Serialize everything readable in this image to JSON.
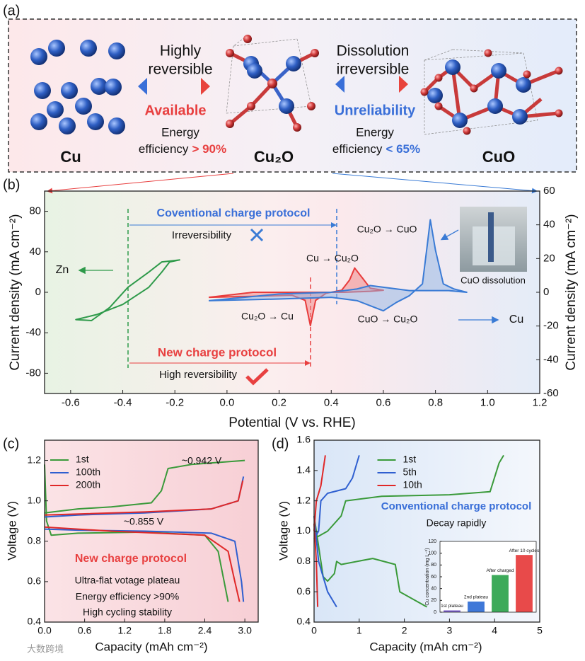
{
  "panel_labels": [
    "(a)",
    "(b)",
    "(c)",
    "(d)"
  ],
  "diagram": {
    "left": {
      "lines": [
        "Highly",
        "reversible"
      ],
      "status": "Available",
      "energy": "Energy",
      "efficiency": "efficiency",
      "value": "> 90%"
    },
    "right": {
      "lines": [
        "Dissolution",
        "irreversible"
      ],
      "status": "Unreliability",
      "energy": "Energy",
      "efficiency": "efficiency",
      "value": "< 65%"
    },
    "materials": [
      "Cu",
      "Cu₂O",
      "CuO"
    ]
  },
  "watermark": "大数跨境",
  "chart_data": [
    {
      "type": "line",
      "xlabel": "Potential (V vs. RHE)",
      "ylabel": "Current density (mA cm⁻²)",
      "y2label": "Current density (mA cm⁻²)",
      "xlim": [
        -0.7,
        1.2
      ],
      "xticks": [
        -0.6,
        -0.4,
        -0.2,
        {
          "value": 0,
          "label": "0.0"
        },
        0.2,
        0.4,
        0.6,
        0.8,
        {
          "value": 1,
          "label": "1.0"
        },
        1.2
      ],
      "ylim": [
        -100,
        100
      ],
      "yticks": [
        -80,
        -40,
        0,
        40,
        80
      ],
      "y2lim": [
        -60,
        60
      ],
      "y2ticks": [
        -60,
        -40,
        -20,
        0,
        20,
        40,
        60
      ],
      "series": [
        {
          "color": "#2e9a4a",
          "x": [
            -0.18,
            -0.25,
            -0.3,
            -0.38,
            -0.45,
            -0.52,
            -0.58,
            -0.5,
            -0.4,
            -0.3,
            -0.25,
            -0.22,
            -0.18
          ],
          "values": [
            32,
            30,
            20,
            5,
            -15,
            -28,
            -27,
            -22,
            -12,
            5,
            20,
            30,
            32
          ]
        },
        {
          "color": "#e83c3c",
          "fill": "#f08080",
          "x": [
            -0.07,
            0.1,
            0.25,
            0.3,
            0.32,
            0.34,
            0.38,
            0.44,
            0.47,
            0.49,
            0.52,
            0.55,
            0.6,
            0.55,
            0.45,
            0.3,
            0.1,
            -0.07
          ],
          "values": [
            -5,
            -4,
            -3,
            -8,
            -33,
            -8,
            -1,
            2,
            12,
            24,
            14,
            4,
            2,
            1,
            0,
            0,
            0,
            -5
          ]
        },
        {
          "color": "#3a7bd5",
          "fill": "#8fb3e3",
          "axis": "y2",
          "x": [
            -0.07,
            0.2,
            0.4,
            0.5,
            0.6,
            0.65,
            0.7,
            0.75,
            0.77,
            0.78,
            0.8,
            0.83,
            0.87,
            0.92,
            0.85,
            0.7,
            0.55,
            0.5,
            0.4,
            0.2,
            -0.07
          ],
          "values": [
            -5,
            -4,
            -3,
            -5,
            -11,
            -6,
            -2,
            5,
            30,
            43,
            25,
            5,
            2,
            0,
            1,
            1,
            4,
            2,
            0,
            -1,
            -5
          ]
        }
      ],
      "annotations": [
        "Coventional charge protocol",
        "Irreversibility",
        "New charge protocol",
        "High reversibility",
        "Zn",
        "Cu → Cu₂O",
        "Cu₂O → CuO",
        "Cu₂O → Cu",
        "CuO → Cu₂O",
        "Cu",
        "CuO dissolution"
      ]
    },
    {
      "type": "line",
      "xlabel": "Capacity (mAh cm⁻²)",
      "ylabel": "Voltage (V)",
      "xlim": [
        0,
        3.2
      ],
      "xticks": [
        {
          "value": 0,
          "label": "0.0"
        },
        0.6,
        1.2,
        1.8,
        2.4,
        {
          "value": 3,
          "label": "3.0"
        }
      ],
      "ylim": [
        0.4,
        1.3
      ],
      "yticks": [
        0.4,
        0.6,
        0.8,
        {
          "value": 1,
          "label": "1.0"
        },
        1.2
      ],
      "legend": "upper left",
      "series": [
        {
          "name": "1st",
          "color": "#3a9a3a",
          "x": [
            0,
            0.5,
            1.0,
            1.6,
            1.75,
            1.85,
            2.2,
            3.0,
            null,
            0,
            0.03,
            0.1,
            0.5,
            1.5,
            2.4,
            2.6,
            2.75
          ],
          "values": [
            0.94,
            0.96,
            0.97,
            0.99,
            1.05,
            1.16,
            1.18,
            1.2,
            null,
            1.18,
            0.9,
            0.83,
            0.84,
            0.845,
            0.83,
            0.75,
            0.5
          ]
        },
        {
          "name": "100th",
          "color": "#2f5fd0",
          "x": [
            0,
            0.5,
            1.5,
            2.5,
            2.9,
            2.98,
            null,
            0,
            0.5,
            1.5,
            2.5,
            2.85,
            2.95,
            2.98
          ],
          "values": [
            0.92,
            0.93,
            0.94,
            0.96,
            1.0,
            1.12,
            null,
            0.86,
            0.855,
            0.85,
            0.84,
            0.8,
            0.6,
            0.5
          ]
        },
        {
          "name": "200th",
          "color": "#e02828",
          "x": [
            0,
            1.5,
            2.5,
            2.9,
            2.97,
            null,
            0,
            1,
            2.4,
            2.75,
            2.85,
            2.92
          ],
          "values": [
            0.93,
            0.945,
            0.96,
            1.0,
            1.1,
            null,
            0.87,
            0.85,
            0.83,
            0.75,
            0.6,
            0.5
          ]
        }
      ],
      "annotations": [
        "~0.942 V",
        "~0.855 V",
        "New charge protocol",
        "Ultra-flat votage plateau",
        "Energy efficiency >90%",
        "High cycling stability"
      ]
    },
    {
      "type": "line",
      "xlabel": "Capacity (mAh cm⁻²)",
      "ylabel": "Voltage (V)",
      "xlim": [
        0,
        5
      ],
      "xticks": [
        0,
        1,
        2,
        3,
        4,
        5
      ],
      "ylim": [
        0.4,
        1.6
      ],
      "yticks": [
        0.4,
        0.6,
        0.8,
        {
          "value": 1,
          "label": "1.0"
        },
        1.2,
        1.4,
        1.6
      ],
      "legend": "upper center",
      "series": [
        {
          "name": "1st",
          "color": "#3a9a3a",
          "x": [
            0,
            0.1,
            0.2,
            0.3,
            0.45,
            0.5,
            0.6,
            1.3,
            1.8,
            1.9,
            2.5,
            null,
            0,
            0.3,
            0.6,
            0.7,
            1.5,
            3,
            3.9,
            4.1,
            4.2
          ],
          "values": [
            1.1,
            0.9,
            0.7,
            0.67,
            0.72,
            0.8,
            0.78,
            0.82,
            0.78,
            0.6,
            0.5,
            null,
            0.95,
            1.0,
            1.1,
            1.2,
            1.23,
            1.24,
            1.26,
            1.45,
            1.5
          ]
        },
        {
          "name": "5th",
          "color": "#2f5fd0",
          "x": [
            0,
            0.1,
            0.3,
            0.5,
            null,
            0,
            0.1,
            0.15,
            0.3,
            0.7,
            0.85,
            1.0
          ],
          "values": [
            1.1,
            0.8,
            0.6,
            0.5,
            null,
            0.95,
            1.0,
            1.2,
            1.25,
            1.28,
            1.35,
            1.5
          ]
        },
        {
          "name": "10th",
          "color": "#e02828",
          "x": [
            0,
            0.05,
            0.08,
            null,
            0,
            0.05,
            0.15,
            0.25
          ],
          "values": [
            1.05,
            0.8,
            0.5,
            null,
            1.0,
            1.2,
            1.3,
            1.5
          ]
        }
      ],
      "annotations": [
        "Conventional charge protocol",
        "Decay rapidly"
      ]
    },
    {
      "type": "bar",
      "ylabel": "Cu concentration (mg L⁻¹)",
      "categories": [
        "1st plateau",
        "2nd plateau",
        "After charged",
        "After 10 cycles"
      ],
      "values": [
        3,
        18,
        63,
        97
      ],
      "colors": [
        "#7b5fc9",
        "#3f78d8",
        "#3daa5a",
        "#e84a4a"
      ],
      "ylim": [
        0,
        120
      ],
      "yticks": [
        0,
        20,
        40,
        60,
        80,
        100,
        120
      ]
    }
  ]
}
